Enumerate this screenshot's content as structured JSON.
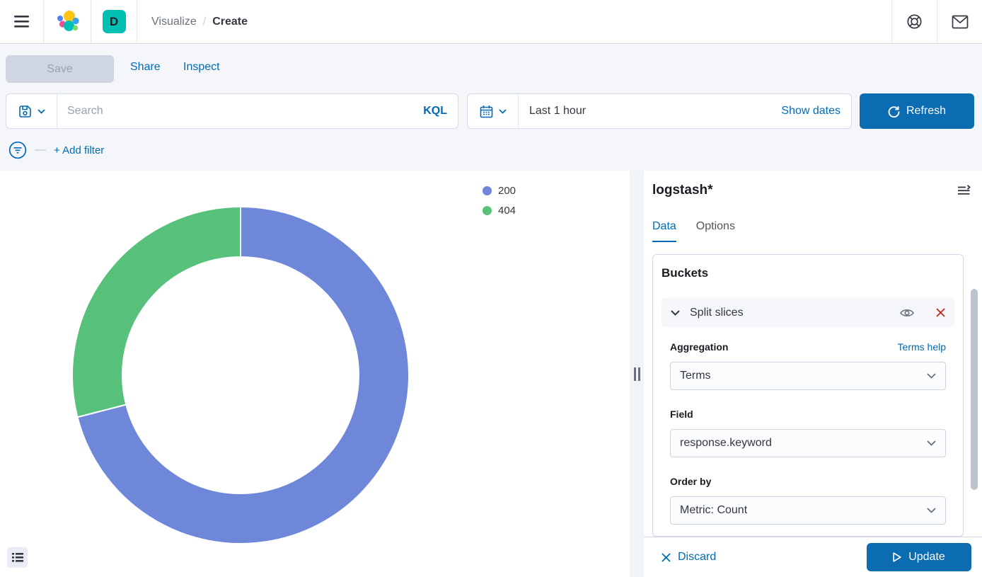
{
  "header": {
    "breadcrumbs": [
      {
        "label": "Visualize"
      },
      {
        "label": "Create"
      }
    ],
    "separator": "/",
    "space_initial": "D"
  },
  "toolbar": {
    "save_label": "Save",
    "share_label": "Share",
    "inspect_label": "Inspect"
  },
  "query_bar": {
    "search_placeholder": "Search",
    "language_label": "KQL",
    "time_value": "Last 1 hour",
    "show_dates_label": "Show dates",
    "refresh_label": "Refresh"
  },
  "filter_bar": {
    "add_filter_label": "+ Add filter"
  },
  "chart_data": {
    "type": "pie",
    "subtype": "donut",
    "title": "",
    "slices": [
      {
        "label": "200",
        "pct": 71,
        "color": "#6F87D8"
      },
      {
        "label": "404",
        "pct": 29,
        "color": "#57C17B"
      }
    ],
    "start_angle_deg": 0,
    "direction": "clockwise",
    "inner_radius_ratio": 0.7,
    "legend_position": "top-right"
  },
  "sidebar": {
    "index_pattern": "logstash*",
    "tabs": [
      {
        "label": "Data",
        "active": true
      },
      {
        "label": "Options",
        "active": false
      }
    ],
    "buckets": {
      "section_title": "Buckets",
      "agg_group_label": "Split slices",
      "aggregation_label": "Aggregation",
      "aggregation_help": "Terms help",
      "aggregation_value": "Terms",
      "field_label": "Field",
      "field_value": "response.keyword",
      "order_by_label": "Order by",
      "order_by_value": "Metric: Count"
    },
    "footer": {
      "discard_label": "Discard",
      "update_label": "Update"
    }
  },
  "colors": {
    "primary": "#006BB4",
    "danger": "#BD271E",
    "space_badge": "#00BFB3",
    "slice_200": "#6F87D8",
    "slice_404": "#57C17B"
  }
}
